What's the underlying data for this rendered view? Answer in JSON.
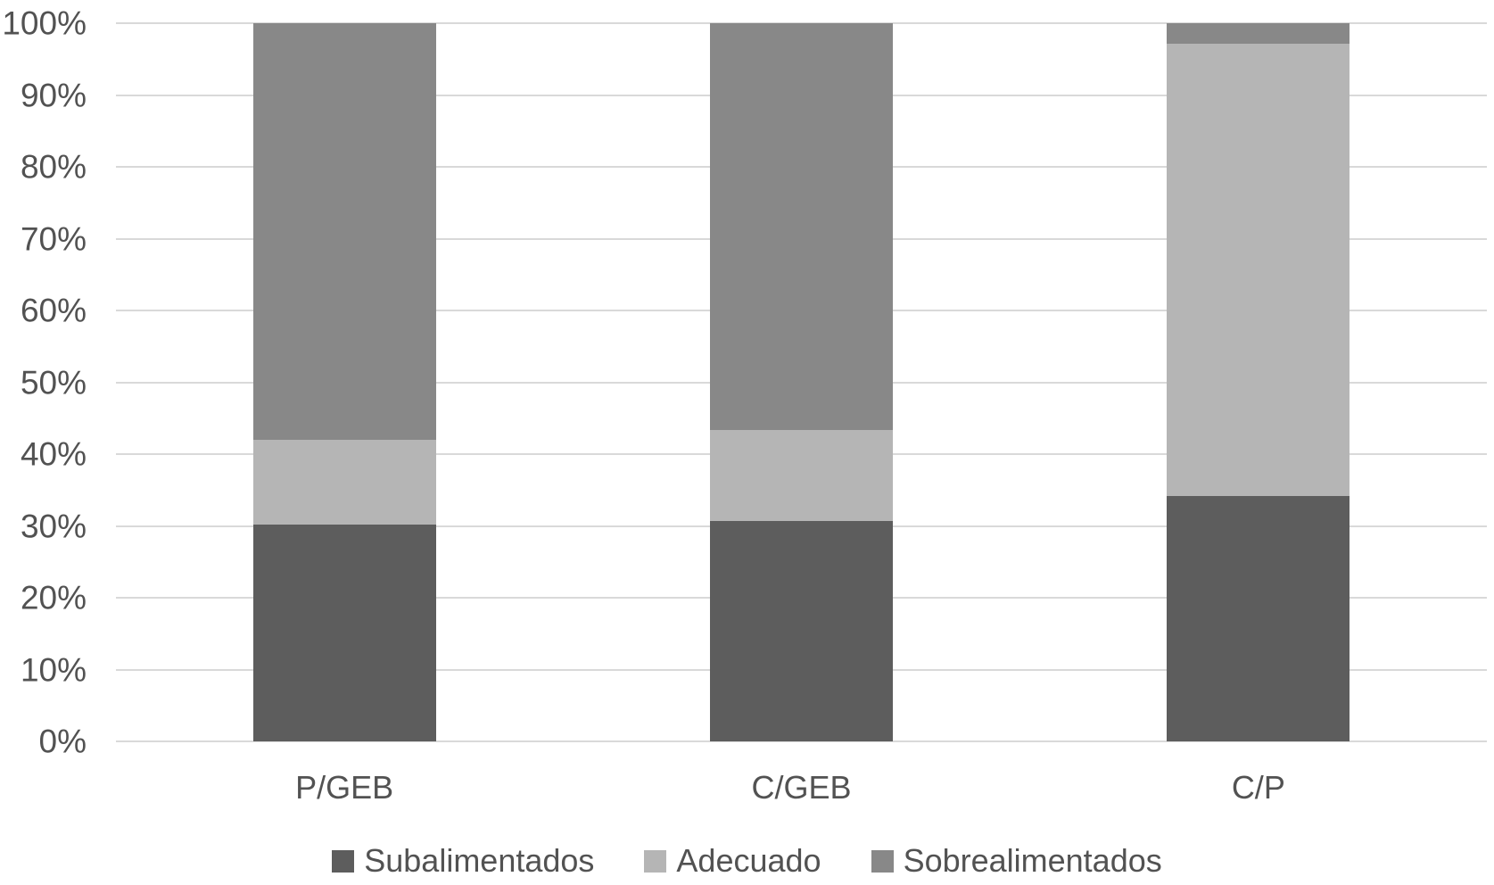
{
  "chart_data": {
    "type": "bar",
    "subtype": "stacked-100",
    "title": "",
    "xlabel": "",
    "ylabel": "",
    "categories": [
      "P/GEB",
      "C/GEB",
      "C/P"
    ],
    "series": [
      {
        "name": "Subalimentados",
        "color": "#5d5d5d",
        "values": [
          30.2,
          30.7,
          34.2
        ]
      },
      {
        "name": "Adecuado",
        "color": "#b5b5b5",
        "values": [
          11.8,
          12.7,
          62.9
        ]
      },
      {
        "name": "Sobrealimentados",
        "color": "#888888",
        "values": [
          58.0,
          56.6,
          2.9
        ]
      }
    ],
    "y_axis": {
      "min": 0,
      "max": 100,
      "unit": "%",
      "ticks": [
        "0%",
        "10%",
        "20%",
        "30%",
        "40%",
        "50%",
        "60%",
        "70%",
        "80%",
        "90%",
        "100%"
      ],
      "grid": true
    },
    "legend_position": "bottom"
  },
  "colors": {
    "background": "#ffffff",
    "gridline": "#d9d9d9",
    "text": "#525252"
  }
}
